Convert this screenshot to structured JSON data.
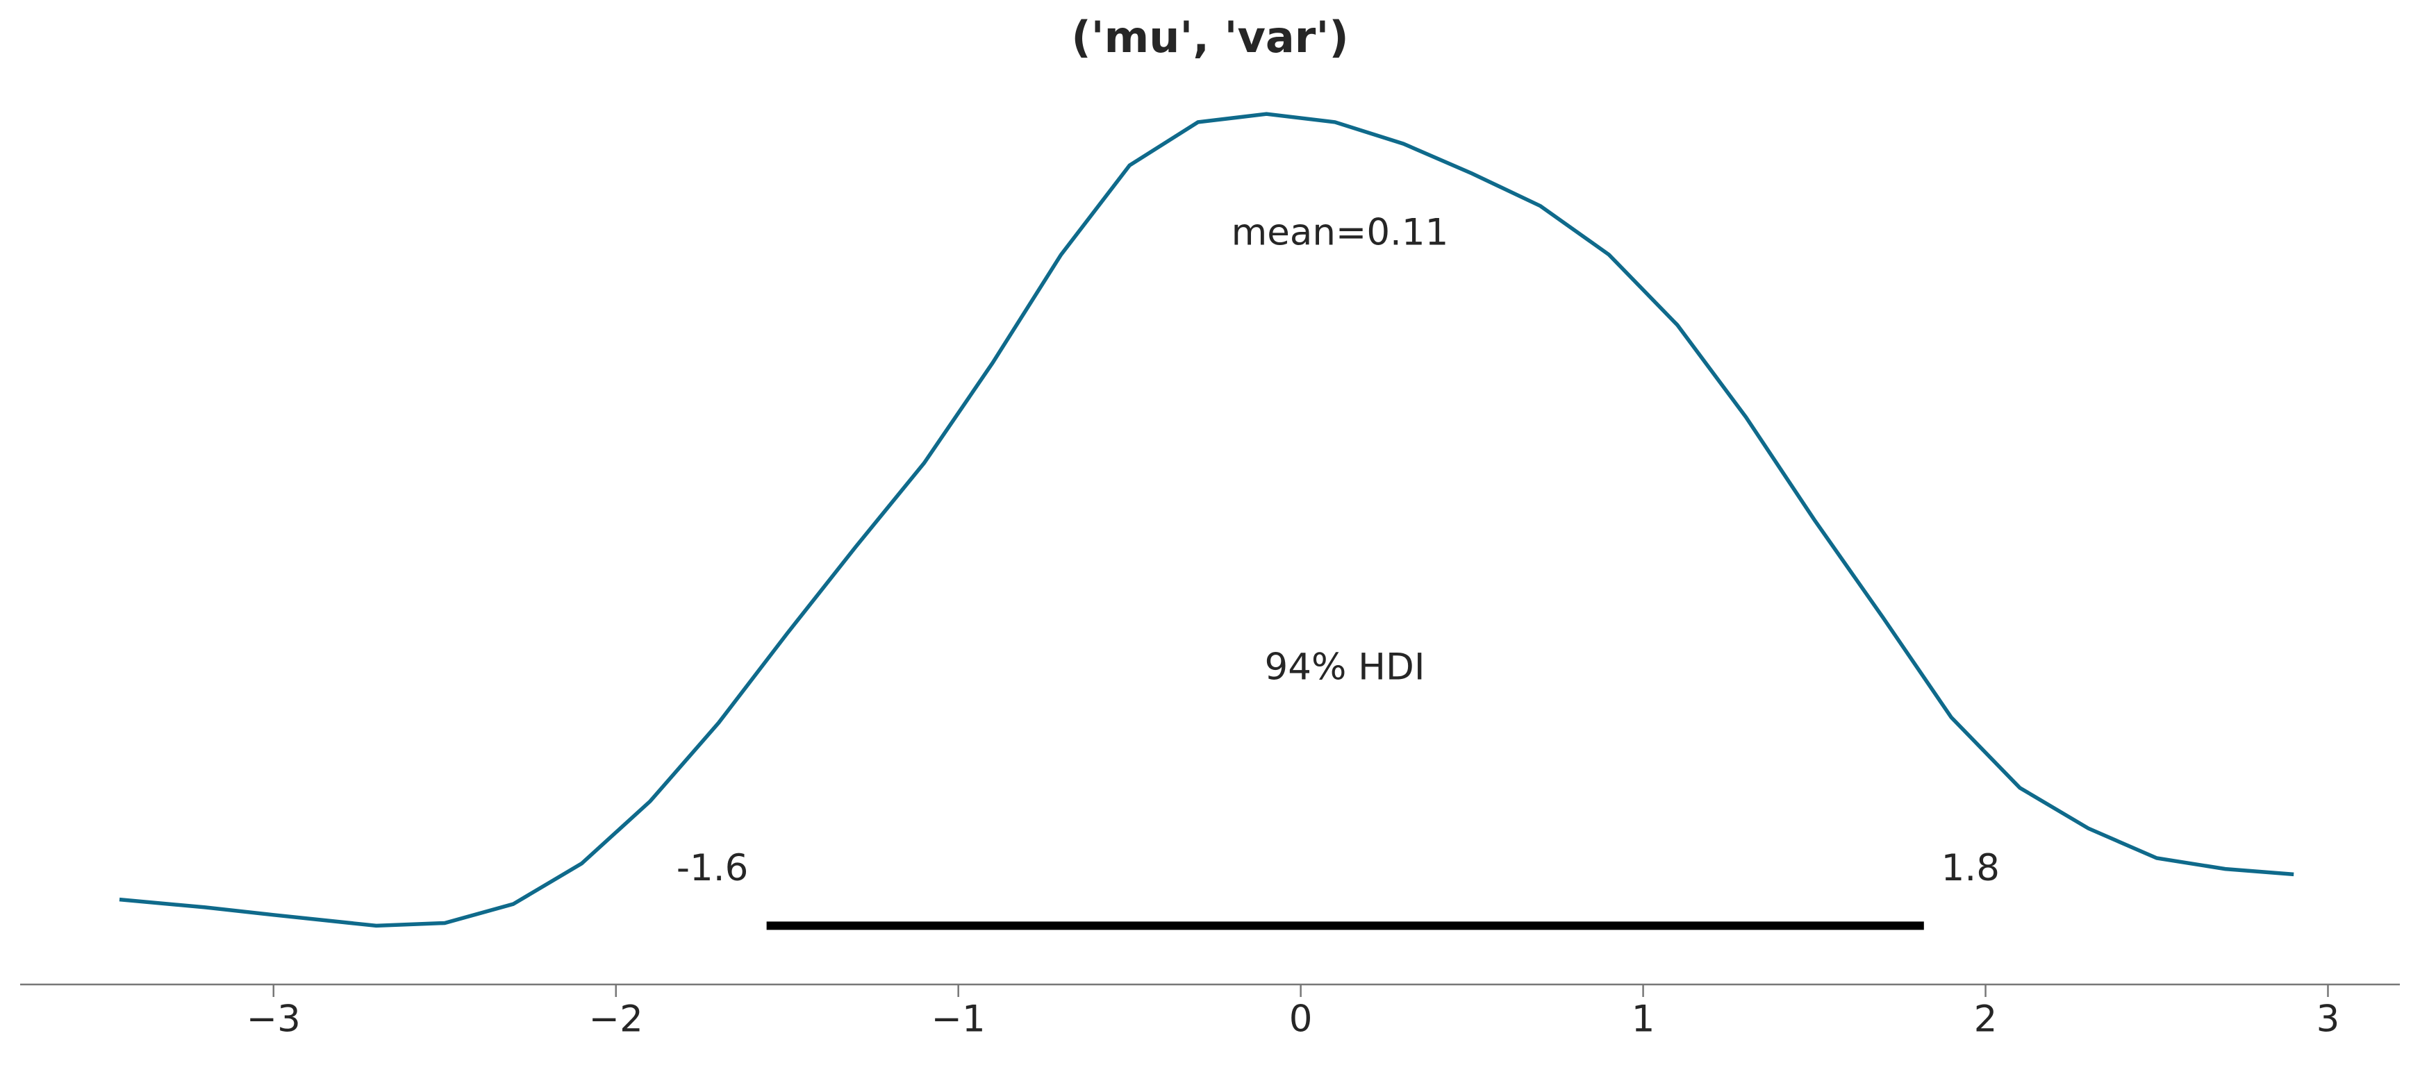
{
  "chart_data": {
    "type": "density",
    "title": "('mu', 'var')",
    "x": [
      -3.45,
      -3.2,
      -3.0,
      -2.7,
      -2.5,
      -2.3,
      -2.1,
      -1.9,
      -1.7,
      -1.5,
      -1.3,
      -1.1,
      -0.9,
      -0.7,
      -0.5,
      -0.3,
      -0.1,
      0.1,
      0.3,
      0.5,
      0.7,
      0.9,
      1.1,
      1.3,
      1.5,
      1.7,
      1.9,
      2.1,
      2.3,
      2.5,
      2.7,
      2.9
    ],
    "values": [
      0.0097,
      0.0068,
      0.004,
      0.0,
      0.001,
      0.008,
      0.023,
      0.046,
      0.075,
      0.108,
      0.14,
      0.171,
      0.208,
      0.248,
      0.281,
      0.297,
      0.3,
      0.297,
      0.289,
      0.278,
      0.266,
      0.248,
      0.222,
      0.188,
      0.15,
      0.114,
      0.077,
      0.051,
      0.036,
      0.025,
      0.021,
      0.019
    ],
    "color": "#0f6a8b",
    "xlim": [
      -3.74,
      3.21
    ],
    "ylim": [
      -0.0217,
      0.308
    ],
    "xticks": [
      {
        "value": -3,
        "label": "−3"
      },
      {
        "value": -2,
        "label": "−2"
      },
      {
        "value": -1,
        "label": "−1"
      },
      0,
      1,
      2,
      3
    ],
    "mean_label": "mean=0.11",
    "hdi": {
      "label": "94% HDI",
      "values": [
        -1.56,
        1.82
      ],
      "value_labels": [
        "-1.6",
        "1.8"
      ],
      "color": "#000000"
    }
  }
}
